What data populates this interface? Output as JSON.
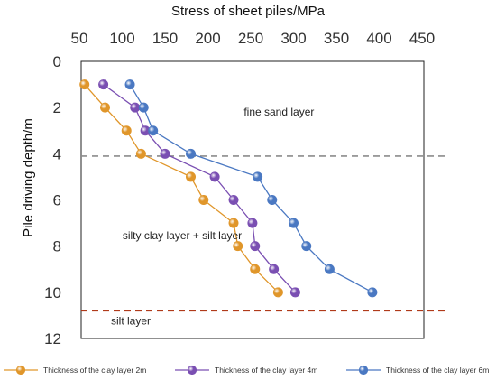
{
  "chart_data": {
    "type": "line",
    "title": "",
    "xlabel": "Stress of sheet piles/MPa",
    "ylabel": "Pile driving depth/m",
    "x_axis_position": "top",
    "y_axis_inverted": true,
    "xlim": [
      50,
      450
    ],
    "ylim": [
      0,
      12
    ],
    "xticks": [
      "50",
      "100",
      "150",
      "200",
      "250",
      "300",
      "350",
      "400",
      "450"
    ],
    "yticks": [
      "0",
      "2",
      "4",
      "6",
      "8",
      "10",
      "12"
    ],
    "grid": false,
    "legend_position": "bottom",
    "series": [
      {
        "name": "Thickness of the clay layer 2m",
        "color": "#e0962a",
        "x": [
          56,
          80,
          105,
          122,
          180,
          195,
          230,
          235,
          255,
          282
        ],
        "y": [
          1,
          2,
          3,
          4,
          5,
          6,
          7,
          8,
          9,
          10
        ]
      },
      {
        "name": "Thickness of the clay layer 4m",
        "color": "#7a4fb2",
        "x": [
          78,
          115,
          127,
          150,
          208,
          230,
          252,
          255,
          277,
          302
        ],
        "y": [
          1,
          2,
          3,
          4,
          5,
          6,
          7,
          8,
          9,
          10
        ]
      },
      {
        "name": "Thickness of the clay layer 6m",
        "color": "#4a78c2",
        "x": [
          109,
          125,
          136,
          180,
          258,
          275,
          300,
          315,
          342,
          392
        ],
        "y": [
          1,
          2,
          3,
          4,
          5,
          6,
          7,
          8,
          9,
          10
        ]
      }
    ],
    "reference_lines": [
      {
        "y": 4.1,
        "color": "#8c8c8c",
        "style": "dashed"
      },
      {
        "y": 10.8,
        "color": "#b03a1a",
        "style": "dashed"
      }
    ],
    "annotations": [
      {
        "text": "fine sand layer",
        "x": 283,
        "y": 2.35
      },
      {
        "text": "silty clay layer + silt layer",
        "x": 170,
        "y": 7.7
      },
      {
        "text": "silt layer",
        "x": 110,
        "y": 11.4
      }
    ]
  }
}
